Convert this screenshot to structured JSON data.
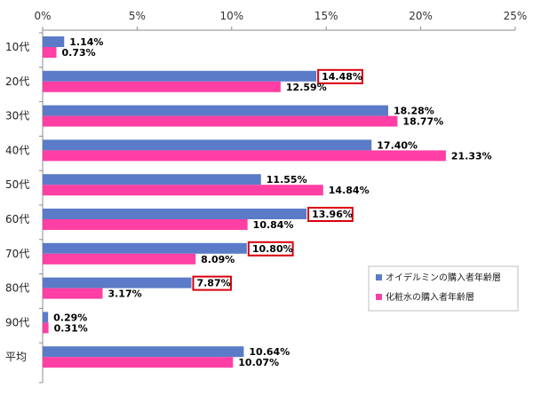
{
  "chart_data": {
    "type": "bar",
    "orientation": "horizontal",
    "categories": [
      "10代",
      "20代",
      "30代",
      "40代",
      "50代",
      "60代",
      "70代",
      "80代",
      "90代",
      "平均"
    ],
    "series": [
      {
        "name": "オイデルミンの購入者年齢層",
        "color": "#5B7BC8",
        "values": [
          1.14,
          14.48,
          18.28,
          17.4,
          11.55,
          13.96,
          10.8,
          7.87,
          0.29,
          10.64
        ],
        "labels": [
          "1.14%",
          "14.48%",
          "18.28%",
          "17.40%",
          "11.55%",
          "13.96%",
          "10.80%",
          "7.87%",
          "0.29%",
          "10.64%"
        ],
        "highlighted": [
          false,
          true,
          false,
          false,
          false,
          true,
          true,
          true,
          false,
          false
        ]
      },
      {
        "name": "化粧水の購入者年齢層",
        "color": "#FF3FA4",
        "values": [
          0.73,
          12.59,
          18.77,
          21.33,
          14.84,
          10.84,
          8.09,
          3.17,
          0.31,
          10.07
        ],
        "labels": [
          "0.73%",
          "12.59%",
          "18.77%",
          "21.33%",
          "14.84%",
          "10.84%",
          "8.09%",
          "3.17%",
          "0.31%",
          "10.07%"
        ]
      }
    ],
    "x_ticks": [
      0,
      5,
      10,
      15,
      20,
      25
    ],
    "x_tick_labels": [
      "0%",
      "5%",
      "10%",
      "15%",
      "20%",
      "25%"
    ],
    "xlim": [
      0,
      25
    ],
    "axis_position": "top",
    "grid": false,
    "legend_position": "bottom-right",
    "highlight_color": "#D9000D",
    "title": "",
    "xlabel": "",
    "ylabel": ""
  }
}
